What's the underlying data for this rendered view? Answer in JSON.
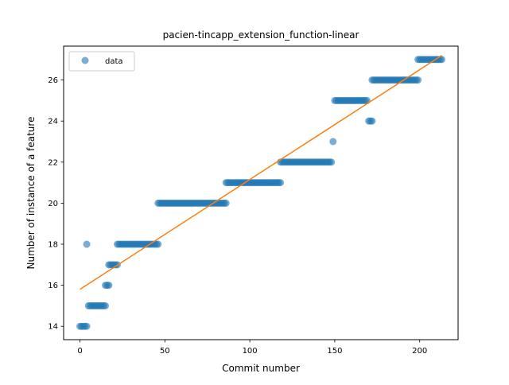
{
  "chart_data": {
    "type": "scatter",
    "title": "pacien-tincapp_extension_function-linear",
    "xlabel": "Commit number",
    "ylabel": "Number of instance of a feature",
    "xlim": [
      -9.6,
      222.6
    ],
    "ylim": [
      13.35,
      27.65
    ],
    "xticks": [
      0,
      50,
      100,
      150,
      200
    ],
    "yticks": [
      14,
      16,
      18,
      20,
      22,
      24,
      26
    ],
    "legend": {
      "position": "upper-left",
      "entries": [
        "data"
      ]
    },
    "colors": {
      "data": "#1f77b4",
      "fit": "#ff7f0e"
    },
    "series": [
      {
        "name": "data",
        "kind": "points",
        "segments": [
          {
            "x_start": 0,
            "x_end": 4,
            "y": 14
          },
          {
            "x_start": 4,
            "x_end": 4,
            "y": 18
          },
          {
            "x_start": 5,
            "x_end": 15,
            "y": 15
          },
          {
            "x_start": 15,
            "x_end": 17,
            "y": 16
          },
          {
            "x_start": 17,
            "x_end": 22,
            "y": 17
          },
          {
            "x_start": 22,
            "x_end": 46,
            "y": 18
          },
          {
            "x_start": 46,
            "x_end": 86,
            "y": 20
          },
          {
            "x_start": 86,
            "x_end": 118,
            "y": 21
          },
          {
            "x_start": 118,
            "x_end": 148,
            "y": 22
          },
          {
            "x_start": 149,
            "x_end": 149,
            "y": 23
          },
          {
            "x_start": 150,
            "x_end": 169,
            "y": 25
          },
          {
            "x_start": 170,
            "x_end": 172,
            "y": 24
          },
          {
            "x_start": 172,
            "x_end": 199,
            "y": 26
          },
          {
            "x_start": 199,
            "x_end": 213,
            "y": 27
          }
        ]
      },
      {
        "kind": "fit-line",
        "x": [
          0,
          213
        ],
        "y": [
          15.8,
          27.2
        ]
      }
    ]
  }
}
